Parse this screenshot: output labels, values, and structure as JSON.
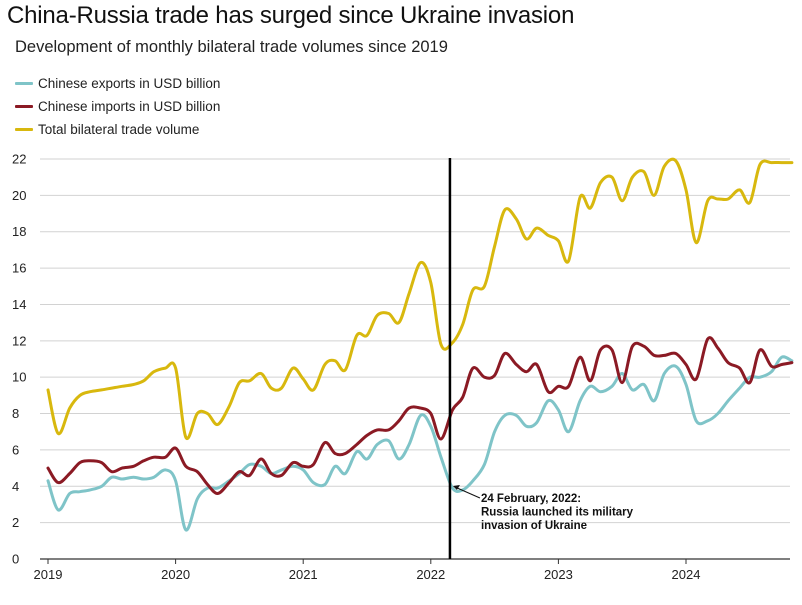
{
  "chart_data": {
    "type": "line",
    "title": "China-Russia trade has surged since Ukraine invasion",
    "subtitle": "Development of monthly bilateral trade volumes since 2019",
    "xlabel": "",
    "ylabel": "",
    "ylim": [
      0,
      22
    ],
    "yticks": [
      "0",
      "2",
      "4",
      "6",
      "8",
      "10",
      "12",
      "14",
      "16",
      "18",
      "20",
      "22"
    ],
    "xticks": [
      "2019",
      "2020",
      "2021",
      "2022",
      "2023",
      "2024"
    ],
    "xrange": [
      2019.0,
      2024.83
    ],
    "grid": "horizontal",
    "legend_position": "top-left",
    "series": [
      {
        "name": "Chinese exports in USD billion",
        "color": "#7fc4c8",
        "points": [
          [
            2019.0,
            4.3
          ],
          [
            2019.08,
            2.7
          ],
          [
            2019.17,
            3.6
          ],
          [
            2019.25,
            3.7
          ],
          [
            2019.33,
            3.8
          ],
          [
            2019.42,
            4.0
          ],
          [
            2019.5,
            4.5
          ],
          [
            2019.58,
            4.4
          ],
          [
            2019.67,
            4.5
          ],
          [
            2019.75,
            4.4
          ],
          [
            2019.83,
            4.5
          ],
          [
            2019.92,
            4.9
          ],
          [
            2020.0,
            4.3
          ],
          [
            2020.08,
            1.6
          ],
          [
            2020.17,
            3.3
          ],
          [
            2020.25,
            3.9
          ],
          [
            2020.33,
            3.9
          ],
          [
            2020.42,
            4.3
          ],
          [
            2020.5,
            4.7
          ],
          [
            2020.58,
            5.2
          ],
          [
            2020.67,
            5.1
          ],
          [
            2020.75,
            4.7
          ],
          [
            2020.83,
            4.9
          ],
          [
            2020.92,
            5.1
          ],
          [
            2021.0,
            4.9
          ],
          [
            2021.08,
            4.2
          ],
          [
            2021.17,
            4.1
          ],
          [
            2021.25,
            5.1
          ],
          [
            2021.33,
            4.7
          ],
          [
            2021.42,
            5.9
          ],
          [
            2021.5,
            5.5
          ],
          [
            2021.58,
            6.3
          ],
          [
            2021.67,
            6.5
          ],
          [
            2021.75,
            5.5
          ],
          [
            2021.83,
            6.3
          ],
          [
            2021.92,
            7.9
          ],
          [
            2022.0,
            7.3
          ],
          [
            2022.08,
            5.6
          ],
          [
            2022.17,
            3.9
          ],
          [
            2022.25,
            3.8
          ],
          [
            2022.33,
            4.3
          ],
          [
            2022.42,
            5.2
          ],
          [
            2022.5,
            7.0
          ],
          [
            2022.58,
            7.9
          ],
          [
            2022.67,
            7.9
          ],
          [
            2022.75,
            7.3
          ],
          [
            2022.83,
            7.5
          ],
          [
            2022.92,
            8.7
          ],
          [
            2023.0,
            8.2
          ],
          [
            2023.08,
            7.0
          ],
          [
            2023.17,
            8.7
          ],
          [
            2023.25,
            9.5
          ],
          [
            2023.33,
            9.2
          ],
          [
            2023.42,
            9.5
          ],
          [
            2023.5,
            10.2
          ],
          [
            2023.58,
            9.3
          ],
          [
            2023.67,
            9.6
          ],
          [
            2023.75,
            8.7
          ],
          [
            2023.83,
            10.2
          ],
          [
            2023.92,
            10.6
          ],
          [
            2024.0,
            9.6
          ],
          [
            2024.08,
            7.6
          ],
          [
            2024.17,
            7.6
          ],
          [
            2024.25,
            8.0
          ],
          [
            2024.33,
            8.7
          ],
          [
            2024.42,
            9.4
          ],
          [
            2024.5,
            10.0
          ],
          [
            2024.58,
            10.0
          ],
          [
            2024.67,
            10.3
          ],
          [
            2024.75,
            11.1
          ],
          [
            2024.83,
            10.9
          ]
        ]
      },
      {
        "name": "Chinese imports in USD billion",
        "color": "#8b1a24",
        "points": [
          [
            2019.0,
            5.0
          ],
          [
            2019.08,
            4.2
          ],
          [
            2019.17,
            4.7
          ],
          [
            2019.25,
            5.3
          ],
          [
            2019.33,
            5.4
          ],
          [
            2019.42,
            5.3
          ],
          [
            2019.5,
            4.8
          ],
          [
            2019.58,
            5.0
          ],
          [
            2019.67,
            5.1
          ],
          [
            2019.75,
            5.4
          ],
          [
            2019.83,
            5.6
          ],
          [
            2019.92,
            5.6
          ],
          [
            2020.0,
            6.1
          ],
          [
            2020.08,
            5.1
          ],
          [
            2020.17,
            4.8
          ],
          [
            2020.25,
            4.1
          ],
          [
            2020.33,
            3.6
          ],
          [
            2020.42,
            4.2
          ],
          [
            2020.5,
            4.8
          ],
          [
            2020.58,
            4.6
          ],
          [
            2020.67,
            5.5
          ],
          [
            2020.75,
            4.7
          ],
          [
            2020.83,
            4.6
          ],
          [
            2020.92,
            5.3
          ],
          [
            2021.0,
            5.1
          ],
          [
            2021.08,
            5.2
          ],
          [
            2021.17,
            6.4
          ],
          [
            2021.25,
            5.8
          ],
          [
            2021.33,
            5.8
          ],
          [
            2021.42,
            6.3
          ],
          [
            2021.5,
            6.8
          ],
          [
            2021.58,
            7.1
          ],
          [
            2021.67,
            7.1
          ],
          [
            2021.75,
            7.6
          ],
          [
            2021.83,
            8.3
          ],
          [
            2021.92,
            8.3
          ],
          [
            2022.0,
            8.0
          ],
          [
            2022.08,
            6.6
          ],
          [
            2022.17,
            8.2
          ],
          [
            2022.25,
            8.9
          ],
          [
            2022.33,
            10.5
          ],
          [
            2022.42,
            10.0
          ],
          [
            2022.5,
            10.1
          ],
          [
            2022.58,
            11.3
          ],
          [
            2022.67,
            10.7
          ],
          [
            2022.75,
            10.3
          ],
          [
            2022.83,
            10.7
          ],
          [
            2022.92,
            9.2
          ],
          [
            2023.0,
            9.5
          ],
          [
            2023.08,
            9.5
          ],
          [
            2023.17,
            11.1
          ],
          [
            2023.25,
            9.8
          ],
          [
            2023.33,
            11.5
          ],
          [
            2023.42,
            11.5
          ],
          [
            2023.5,
            9.7
          ],
          [
            2023.58,
            11.7
          ],
          [
            2023.67,
            11.7
          ],
          [
            2023.75,
            11.2
          ],
          [
            2023.83,
            11.2
          ],
          [
            2023.92,
            11.3
          ],
          [
            2024.0,
            10.7
          ],
          [
            2024.08,
            9.9
          ],
          [
            2024.17,
            12.1
          ],
          [
            2024.25,
            11.6
          ],
          [
            2024.33,
            10.8
          ],
          [
            2024.42,
            10.5
          ],
          [
            2024.5,
            9.7
          ],
          [
            2024.58,
            11.5
          ],
          [
            2024.67,
            10.6
          ],
          [
            2024.75,
            10.7
          ],
          [
            2024.83,
            10.8
          ]
        ]
      },
      {
        "name": "Total bilateral trade volume",
        "color": "#d8b80e",
        "points": [
          [
            2019.0,
            9.3
          ],
          [
            2019.08,
            6.9
          ],
          [
            2019.17,
            8.3
          ],
          [
            2019.25,
            9.0
          ],
          [
            2019.33,
            9.2
          ],
          [
            2019.42,
            9.3
          ],
          [
            2019.5,
            9.4
          ],
          [
            2019.58,
            9.5
          ],
          [
            2019.67,
            9.6
          ],
          [
            2019.75,
            9.8
          ],
          [
            2019.83,
            10.3
          ],
          [
            2019.92,
            10.5
          ],
          [
            2020.0,
            10.5
          ],
          [
            2020.08,
            6.7
          ],
          [
            2020.17,
            8.0
          ],
          [
            2020.25,
            8.0
          ],
          [
            2020.33,
            7.4
          ],
          [
            2020.42,
            8.4
          ],
          [
            2020.5,
            9.7
          ],
          [
            2020.58,
            9.8
          ],
          [
            2020.67,
            10.2
          ],
          [
            2020.75,
            9.4
          ],
          [
            2020.83,
            9.4
          ],
          [
            2020.92,
            10.5
          ],
          [
            2021.0,
            9.9
          ],
          [
            2021.08,
            9.3
          ],
          [
            2021.17,
            10.7
          ],
          [
            2021.25,
            10.9
          ],
          [
            2021.33,
            10.4
          ],
          [
            2021.42,
            12.3
          ],
          [
            2021.5,
            12.3
          ],
          [
            2021.58,
            13.4
          ],
          [
            2021.67,
            13.5
          ],
          [
            2021.75,
            13.0
          ],
          [
            2021.83,
            14.6
          ],
          [
            2021.92,
            16.3
          ],
          [
            2022.0,
            15.2
          ],
          [
            2022.08,
            11.8
          ],
          [
            2022.17,
            11.9
          ],
          [
            2022.25,
            12.9
          ],
          [
            2022.33,
            14.8
          ],
          [
            2022.42,
            15.0
          ],
          [
            2022.5,
            17.2
          ],
          [
            2022.58,
            19.2
          ],
          [
            2022.67,
            18.7
          ],
          [
            2022.75,
            17.6
          ],
          [
            2022.83,
            18.2
          ],
          [
            2022.92,
            17.8
          ],
          [
            2023.0,
            17.5
          ],
          [
            2023.08,
            16.4
          ],
          [
            2023.17,
            19.9
          ],
          [
            2023.25,
            19.3
          ],
          [
            2023.33,
            20.7
          ],
          [
            2023.42,
            21.0
          ],
          [
            2023.5,
            19.7
          ],
          [
            2023.58,
            21.0
          ],
          [
            2023.67,
            21.3
          ],
          [
            2023.75,
            20.0
          ],
          [
            2023.83,
            21.6
          ],
          [
            2023.92,
            21.9
          ],
          [
            2024.0,
            20.3
          ],
          [
            2024.08,
            17.4
          ],
          [
            2024.17,
            19.7
          ],
          [
            2024.25,
            19.8
          ],
          [
            2024.33,
            19.8
          ],
          [
            2024.42,
            20.3
          ],
          [
            2024.5,
            19.6
          ],
          [
            2024.58,
            21.7
          ],
          [
            2024.67,
            21.8
          ],
          [
            2024.75,
            21.8
          ],
          [
            2024.83,
            21.8
          ]
        ]
      }
    ],
    "annotation": {
      "x": 2022.15,
      "lines": [
        "24 February, 2022:",
        "Russia launched its military",
        "invasion of Ukraine"
      ]
    }
  }
}
